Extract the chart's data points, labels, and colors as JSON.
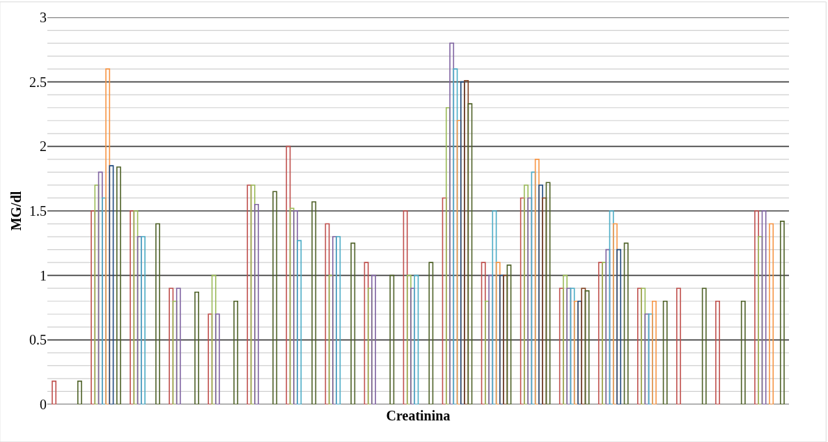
{
  "chart_data": {
    "type": "bar",
    "xlabel": "Creatinina",
    "ylabel": "MG/dl",
    "categories": [
      null,
      null,
      null,
      null,
      null,
      null,
      null,
      null,
      null,
      null,
      null,
      null,
      null,
      null,
      null,
      null,
      null,
      null,
      null
    ],
    "series": [
      {
        "color": "#c0504d",
        "values": [
          0.18,
          1.5,
          1.5,
          0.9,
          0.7,
          1.7,
          2.0,
          1.4,
          1.1,
          1.5,
          1.6,
          1.1,
          1.6,
          0.9,
          1.1,
          0.9,
          0.9,
          0.8,
          1.5
        ]
      },
      {
        "color": "#9bbb59",
        "values": [
          null,
          1.7,
          1.5,
          0.8,
          1.0,
          1.7,
          1.52,
          1.0,
          0.9,
          1.0,
          2.3,
          0.8,
          1.7,
          1.0,
          1.1,
          0.9,
          null,
          null,
          1.3
        ]
      },
      {
        "color": "#8064a2",
        "values": [
          null,
          1.8,
          1.3,
          0.9,
          0.7,
          1.55,
          1.5,
          1.3,
          1.0,
          0.9,
          2.8,
          1.0,
          1.6,
          0.9,
          1.2,
          0.7,
          null,
          null,
          1.5
        ]
      },
      {
        "color": "#4bacc6",
        "values": [
          null,
          1.6,
          1.3,
          null,
          null,
          null,
          1.27,
          1.3,
          null,
          1.0,
          2.6,
          1.5,
          1.8,
          0.9,
          1.5,
          0.7,
          null,
          null,
          null
        ]
      },
      {
        "color": "#f79646",
        "values": [
          null,
          2.6,
          null,
          null,
          null,
          null,
          null,
          null,
          null,
          null,
          2.2,
          1.1,
          1.9,
          0.8,
          1.4,
          0.8,
          null,
          null,
          1.4
        ]
      },
      {
        "color": "#1f497d",
        "values": [
          null,
          1.85,
          null,
          null,
          null,
          null,
          null,
          null,
          null,
          null,
          2.5,
          1.0,
          1.7,
          0.8,
          1.2,
          null,
          null,
          null,
          null
        ]
      },
      {
        "color": "#7f3f1f",
        "values": [
          null,
          null,
          null,
          null,
          null,
          null,
          null,
          null,
          null,
          null,
          2.51,
          1.0,
          1.6,
          0.9,
          null,
          null,
          null,
          null,
          null
        ]
      },
      {
        "color": "#4f6228",
        "values": [
          0.18,
          1.84,
          1.4,
          0.87,
          0.8,
          1.65,
          1.57,
          1.25,
          1.0,
          1.1,
          2.33,
          1.08,
          1.72,
          0.88,
          1.25,
          0.8,
          0.9,
          0.8,
          1.42
        ]
      }
    ],
    "ylim": [
      0,
      3
    ],
    "yticks": [
      0,
      {
        "value": 0.1,
        "label": null
      },
      {
        "value": 0.2,
        "label": null
      },
      {
        "value": 0.3,
        "label": null
      },
      {
        "value": 0.4,
        "label": null
      },
      0.5,
      {
        "value": 0.6,
        "label": null
      },
      {
        "value": 0.7,
        "label": null
      },
      {
        "value": 0.8,
        "label": null
      },
      {
        "value": 0.9,
        "label": null
      },
      1,
      {
        "value": 1.1,
        "label": null
      },
      {
        "value": 1.2,
        "label": null
      },
      {
        "value": 1.3,
        "label": null
      },
      {
        "value": 1.4,
        "label": null
      },
      1.5,
      {
        "value": 1.6,
        "label": null
      },
      {
        "value": 1.7,
        "label": null
      },
      {
        "value": 1.8,
        "label": null
      },
      {
        "value": 1.9,
        "label": null
      },
      2,
      {
        "value": 2.1,
        "label": null
      },
      {
        "value": 2.2,
        "label": null
      },
      {
        "value": 2.3,
        "label": null
      },
      {
        "value": 2.4,
        "label": null
      },
      2.5,
      {
        "value": 2.6,
        "label": null
      },
      {
        "value": 2.7,
        "label": null
      },
      {
        "value": 2.8,
        "label": null
      },
      {
        "value": 2.9,
        "label": null
      },
      3
    ],
    "grid": "y"
  }
}
